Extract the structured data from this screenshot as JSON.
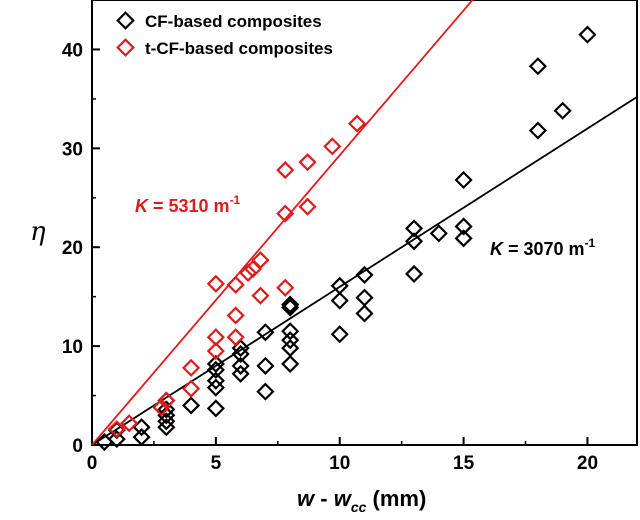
{
  "chart_data": {
    "type": "scatter",
    "xlabel": {
      "main": "w",
      "dash": " - ",
      "sub_base": "w",
      "subscript": "cc",
      "unit": " (mm)"
    },
    "ylabel": "η",
    "xlim": [
      0,
      22
    ],
    "ylim": [
      0,
      45
    ],
    "xticks": [
      0,
      5,
      10,
      15,
      20
    ],
    "yticks": [
      0,
      10,
      20,
      30,
      40
    ],
    "grid": false,
    "legend_position": "top-left",
    "series": [
      {
        "name": "CF-based composites",
        "color": "#000000",
        "marker": "diamond",
        "points": [
          [
            0.5,
            0.3
          ],
          [
            1,
            0.6
          ],
          [
            1,
            1.5
          ],
          [
            2,
            0.8
          ],
          [
            2,
            1.8
          ],
          [
            3,
            1.8
          ],
          [
            3,
            2.4
          ],
          [
            3,
            3.0
          ],
          [
            3,
            3.6
          ],
          [
            3,
            4.5
          ],
          [
            4,
            4.0
          ],
          [
            5,
            3.7
          ],
          [
            5,
            5.8
          ],
          [
            5,
            6.5
          ],
          [
            5,
            7.6
          ],
          [
            5,
            8.2
          ],
          [
            6,
            7.2
          ],
          [
            6,
            8.0
          ],
          [
            6,
            9.2
          ],
          [
            6,
            9.8
          ],
          [
            7,
            5.4
          ],
          [
            7,
            8.0
          ],
          [
            7,
            11.4
          ],
          [
            8,
            8.2
          ],
          [
            8,
            9.8
          ],
          [
            8,
            10.6
          ],
          [
            8,
            11.5
          ],
          [
            8,
            13.9
          ],
          [
            8,
            14.2
          ],
          [
            10,
            11.2
          ],
          [
            10,
            14.6
          ],
          [
            10,
            16.1
          ],
          [
            11,
            13.3
          ],
          [
            11,
            14.9
          ],
          [
            11,
            17.2
          ],
          [
            13,
            17.3
          ],
          [
            13,
            20.6
          ],
          [
            13,
            21.9
          ],
          [
            14,
            21.4
          ],
          [
            15,
            20.9
          ],
          [
            15,
            22.1
          ],
          [
            15,
            26.8
          ],
          [
            18,
            31.8
          ],
          [
            18,
            38.3
          ],
          [
            19,
            33.8
          ],
          [
            20,
            41.5
          ]
        ],
        "fit": {
          "K_value": 3070,
          "slope": 1.6,
          "label_prefix": "K",
          "label_text": " = 3070 m",
          "label_sup": "-1"
        }
      },
      {
        "name": "t-CF-based composites",
        "color": "#e01b1b",
        "marker": "diamond",
        "points": [
          [
            1,
            1.6
          ],
          [
            1.5,
            2.2
          ],
          [
            2.8,
            3.8
          ],
          [
            3,
            4.5
          ],
          [
            4,
            5.7
          ],
          [
            4,
            7.8
          ],
          [
            5,
            9.5
          ],
          [
            5,
            10.9
          ],
          [
            5,
            16.3
          ],
          [
            5.8,
            10.9
          ],
          [
            5.8,
            13.1
          ],
          [
            5.8,
            16.2
          ],
          [
            6.3,
            17.4
          ],
          [
            6.5,
            17.8
          ],
          [
            6.8,
            15.1
          ],
          [
            6.8,
            18.7
          ],
          [
            7.8,
            15.9
          ],
          [
            7.8,
            23.4
          ],
          [
            7.8,
            27.8
          ],
          [
            8.7,
            24.1
          ],
          [
            8.7,
            28.6
          ],
          [
            9.7,
            30.2
          ],
          [
            10.7,
            32.5
          ]
        ],
        "fit": {
          "K_value": 5310,
          "slope": 2.93,
          "label_prefix": "K",
          "label_text": " = 5310 m",
          "label_sup": "-1"
        }
      }
    ]
  }
}
